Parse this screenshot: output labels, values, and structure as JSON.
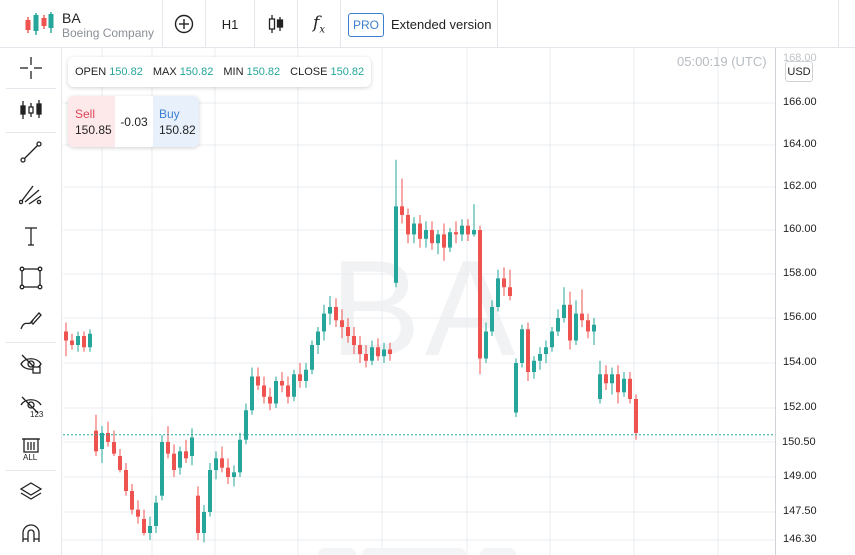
{
  "header": {
    "symbol": "BA",
    "company": "Boeing Company",
    "timeframe": "H1",
    "pro_badge": "PRO",
    "extended_label": "Extended version",
    "icons": [
      "logo-candles-icon",
      "add-circle-icon",
      "candlestick-icon",
      "function-icon"
    ]
  },
  "left_toolbar": {
    "tools": [
      "crosshair-icon",
      "indicators-icon",
      "trend-line-icon",
      "fib-icon",
      "text-icon",
      "rectangle-icon",
      "brush-icon",
      "hide-drawings-icon",
      "hide-indicators-icon",
      "delete-all-icon",
      "layers-icon",
      "magnet-icon"
    ],
    "delete_all_label": "ALL",
    "hide_indicators_label": "123"
  },
  "ohlc": {
    "open_label": "OPEN",
    "open": "150.82",
    "max_label": "MAX",
    "max": "150.82",
    "min_label": "MIN",
    "min": "150.82",
    "close_label": "CLOSE",
    "close": "150.82"
  },
  "trade": {
    "sell_label": "Sell",
    "sell_price": "150.85",
    "spread": "-0.03",
    "buy_label": "Buy",
    "buy_price": "150.82"
  },
  "clock": "05:00:19 (UTC)",
  "currency": "USD",
  "watermark": "BA",
  "colors": {
    "up": "#26a69a",
    "down": "#ef5350",
    "accent": "#3b7fd1",
    "grid": "#e9ecef"
  },
  "price_axis": {
    "top_partial": "168.00",
    "ticks": [
      "166.00",
      "164.00",
      "162.00",
      "160.00",
      "158.00",
      "156.00",
      "154.00",
      "152.00",
      "150.50",
      "149.00",
      "147.50",
      "146.30"
    ],
    "current": "150.50"
  },
  "chart_data": {
    "type": "candlestick",
    "current_price": 150.82,
    "ylim": [
      146.3,
      166.0
    ],
    "candles": [
      {
        "o": 155.4,
        "h": 155.8,
        "l": 154.3,
        "c": 155.0
      },
      {
        "o": 155.0,
        "h": 155.3,
        "l": 154.6,
        "c": 154.8
      },
      {
        "o": 154.8,
        "h": 155.4,
        "l": 154.5,
        "c": 155.2
      },
      {
        "o": 155.2,
        "h": 155.4,
        "l": 154.5,
        "c": 154.7
      },
      {
        "o": 154.7,
        "h": 155.5,
        "l": 154.5,
        "c": 155.3
      },
      {
        "o": 151.0,
        "h": 151.7,
        "l": 149.9,
        "c": 150.1
      },
      {
        "o": 150.2,
        "h": 151.2,
        "l": 149.6,
        "c": 150.9
      },
      {
        "o": 150.9,
        "h": 151.4,
        "l": 150.3,
        "c": 150.5
      },
      {
        "o": 150.5,
        "h": 151.0,
        "l": 149.9,
        "c": 150.0
      },
      {
        "o": 149.9,
        "h": 150.2,
        "l": 149.2,
        "c": 149.3
      },
      {
        "o": 149.3,
        "h": 149.6,
        "l": 148.2,
        "c": 148.4
      },
      {
        "o": 148.4,
        "h": 148.7,
        "l": 147.4,
        "c": 147.6
      },
      {
        "o": 147.6,
        "h": 148.0,
        "l": 147.0,
        "c": 147.3
      },
      {
        "o": 147.2,
        "h": 147.6,
        "l": 146.5,
        "c": 146.6
      },
      {
        "o": 146.6,
        "h": 147.3,
        "l": 146.3,
        "c": 146.9
      },
      {
        "o": 146.9,
        "h": 148.2,
        "l": 146.6,
        "c": 147.9
      },
      {
        "o": 148.2,
        "h": 150.8,
        "l": 148.0,
        "c": 150.5
      },
      {
        "o": 150.5,
        "h": 151.2,
        "l": 149.8,
        "c": 150.0
      },
      {
        "o": 150.0,
        "h": 150.4,
        "l": 149.0,
        "c": 149.3
      },
      {
        "o": 149.4,
        "h": 150.3,
        "l": 149.1,
        "c": 150.1
      },
      {
        "o": 150.1,
        "h": 150.6,
        "l": 149.6,
        "c": 149.8
      },
      {
        "o": 149.9,
        "h": 151.1,
        "l": 149.5,
        "c": 150.7
      },
      {
        "o": 148.2,
        "h": 148.6,
        "l": 146.3,
        "c": 146.6
      },
      {
        "o": 146.6,
        "h": 147.8,
        "l": 146.2,
        "c": 147.5
      },
      {
        "o": 147.5,
        "h": 149.6,
        "l": 147.3,
        "c": 149.3
      },
      {
        "o": 149.3,
        "h": 150.1,
        "l": 148.9,
        "c": 149.8
      },
      {
        "o": 149.8,
        "h": 150.3,
        "l": 149.2,
        "c": 149.4
      },
      {
        "o": 149.4,
        "h": 149.8,
        "l": 148.7,
        "c": 149.0
      },
      {
        "o": 149.0,
        "h": 149.5,
        "l": 148.6,
        "c": 149.2
      },
      {
        "o": 149.2,
        "h": 150.9,
        "l": 149.0,
        "c": 150.6
      },
      {
        "o": 150.6,
        "h": 152.2,
        "l": 150.4,
        "c": 151.9
      },
      {
        "o": 151.9,
        "h": 153.8,
        "l": 151.7,
        "c": 153.4
      },
      {
        "o": 153.4,
        "h": 153.8,
        "l": 152.8,
        "c": 153.0
      },
      {
        "o": 153.0,
        "h": 153.4,
        "l": 152.2,
        "c": 152.5
      },
      {
        "o": 152.5,
        "h": 152.9,
        "l": 151.9,
        "c": 152.2
      },
      {
        "o": 152.2,
        "h": 153.4,
        "l": 152.0,
        "c": 153.2
      },
      {
        "o": 153.2,
        "h": 153.6,
        "l": 152.7,
        "c": 153.0
      },
      {
        "o": 153.0,
        "h": 153.4,
        "l": 152.2,
        "c": 152.5
      },
      {
        "o": 152.5,
        "h": 153.7,
        "l": 152.3,
        "c": 153.5
      },
      {
        "o": 153.5,
        "h": 154.0,
        "l": 152.9,
        "c": 153.2
      },
      {
        "o": 153.2,
        "h": 154.0,
        "l": 152.9,
        "c": 153.7
      },
      {
        "o": 153.7,
        "h": 155.0,
        "l": 153.5,
        "c": 154.8
      },
      {
        "o": 154.8,
        "h": 155.6,
        "l": 154.4,
        "c": 155.4
      },
      {
        "o": 155.4,
        "h": 156.6,
        "l": 155.0,
        "c": 156.2
      },
      {
        "o": 156.2,
        "h": 157.0,
        "l": 155.7,
        "c": 156.5
      },
      {
        "o": 156.5,
        "h": 156.9,
        "l": 155.6,
        "c": 155.9
      },
      {
        "o": 155.9,
        "h": 156.4,
        "l": 155.1,
        "c": 155.6
      },
      {
        "o": 155.6,
        "h": 156.0,
        "l": 154.9,
        "c": 155.2
      },
      {
        "o": 155.2,
        "h": 155.6,
        "l": 154.4,
        "c": 154.8
      },
      {
        "o": 154.8,
        "h": 155.2,
        "l": 154.0,
        "c": 154.4
      },
      {
        "o": 154.4,
        "h": 154.8,
        "l": 153.8,
        "c": 154.1
      },
      {
        "o": 154.1,
        "h": 155.0,
        "l": 153.9,
        "c": 154.7
      },
      {
        "o": 154.7,
        "h": 155.1,
        "l": 154.1,
        "c": 154.3
      },
      {
        "o": 154.3,
        "h": 154.9,
        "l": 154.0,
        "c": 154.6
      },
      {
        "o": 154.6,
        "h": 154.9,
        "l": 154.1,
        "c": 154.4
      },
      {
        "o": 157.6,
        "h": 163.3,
        "l": 157.4,
        "c": 161.1
      },
      {
        "o": 161.1,
        "h": 162.4,
        "l": 160.3,
        "c": 160.7
      },
      {
        "o": 160.7,
        "h": 161.0,
        "l": 159.4,
        "c": 159.8
      },
      {
        "o": 159.8,
        "h": 160.6,
        "l": 159.4,
        "c": 160.3
      },
      {
        "o": 160.3,
        "h": 160.7,
        "l": 159.2,
        "c": 159.6
      },
      {
        "o": 159.6,
        "h": 160.4,
        "l": 159.2,
        "c": 160.0
      },
      {
        "o": 160.0,
        "h": 160.4,
        "l": 159.1,
        "c": 159.4
      },
      {
        "o": 159.4,
        "h": 160.0,
        "l": 158.9,
        "c": 159.8
      },
      {
        "o": 159.8,
        "h": 160.3,
        "l": 158.6,
        "c": 159.2
      },
      {
        "o": 159.2,
        "h": 160.1,
        "l": 159.0,
        "c": 159.9
      },
      {
        "o": 159.9,
        "h": 160.4,
        "l": 159.4,
        "c": 159.8
      },
      {
        "o": 159.8,
        "h": 160.5,
        "l": 159.5,
        "c": 160.2
      },
      {
        "o": 160.2,
        "h": 160.5,
        "l": 159.5,
        "c": 159.8
      },
      {
        "o": 159.8,
        "h": 161.2,
        "l": 159.7,
        "c": 160.0
      },
      {
        "o": 160.0,
        "h": 160.2,
        "l": 153.5,
        "c": 154.2
      },
      {
        "o": 154.2,
        "h": 155.8,
        "l": 154.0,
        "c": 155.4
      },
      {
        "o": 155.4,
        "h": 156.8,
        "l": 155.2,
        "c": 156.5
      },
      {
        "o": 156.5,
        "h": 158.2,
        "l": 156.3,
        "c": 157.8
      },
      {
        "o": 157.8,
        "h": 158.3,
        "l": 157.0,
        "c": 157.4
      },
      {
        "o": 157.4,
        "h": 158.2,
        "l": 156.8,
        "c": 157.0
      },
      {
        "o": 151.8,
        "h": 154.2,
        "l": 151.6,
        "c": 154.0
      },
      {
        "o": 154.0,
        "h": 155.7,
        "l": 153.8,
        "c": 155.5
      },
      {
        "o": 155.5,
        "h": 155.8,
        "l": 153.2,
        "c": 153.6
      },
      {
        "o": 153.6,
        "h": 154.3,
        "l": 153.3,
        "c": 154.1
      },
      {
        "o": 154.1,
        "h": 154.7,
        "l": 153.7,
        "c": 154.4
      },
      {
        "o": 154.4,
        "h": 155.0,
        "l": 154.0,
        "c": 154.7
      },
      {
        "o": 154.7,
        "h": 155.6,
        "l": 154.5,
        "c": 155.4
      },
      {
        "o": 155.4,
        "h": 156.4,
        "l": 155.2,
        "c": 156.0
      },
      {
        "o": 156.0,
        "h": 157.4,
        "l": 155.8,
        "c": 156.6
      },
      {
        "o": 156.6,
        "h": 157.2,
        "l": 154.6,
        "c": 155.0
      },
      {
        "o": 155.0,
        "h": 156.8,
        "l": 154.8,
        "c": 156.2
      },
      {
        "o": 156.2,
        "h": 157.3,
        "l": 155.6,
        "c": 155.9
      },
      {
        "o": 155.9,
        "h": 156.2,
        "l": 155.1,
        "c": 155.4
      },
      {
        "o": 155.4,
        "h": 156.0,
        "l": 154.8,
        "c": 155.7
      },
      {
        "o": 152.4,
        "h": 154.1,
        "l": 152.2,
        "c": 153.5
      },
      {
        "o": 153.5,
        "h": 153.9,
        "l": 152.8,
        "c": 153.1
      },
      {
        "o": 153.1,
        "h": 153.8,
        "l": 152.6,
        "c": 153.5
      },
      {
        "o": 153.5,
        "h": 153.9,
        "l": 152.2,
        "c": 152.7
      },
      {
        "o": 152.7,
        "h": 153.6,
        "l": 152.5,
        "c": 153.3
      },
      {
        "o": 153.3,
        "h": 153.6,
        "l": 152.2,
        "c": 152.4
      },
      {
        "o": 152.4,
        "h": 152.6,
        "l": 150.6,
        "c": 150.9
      }
    ]
  }
}
